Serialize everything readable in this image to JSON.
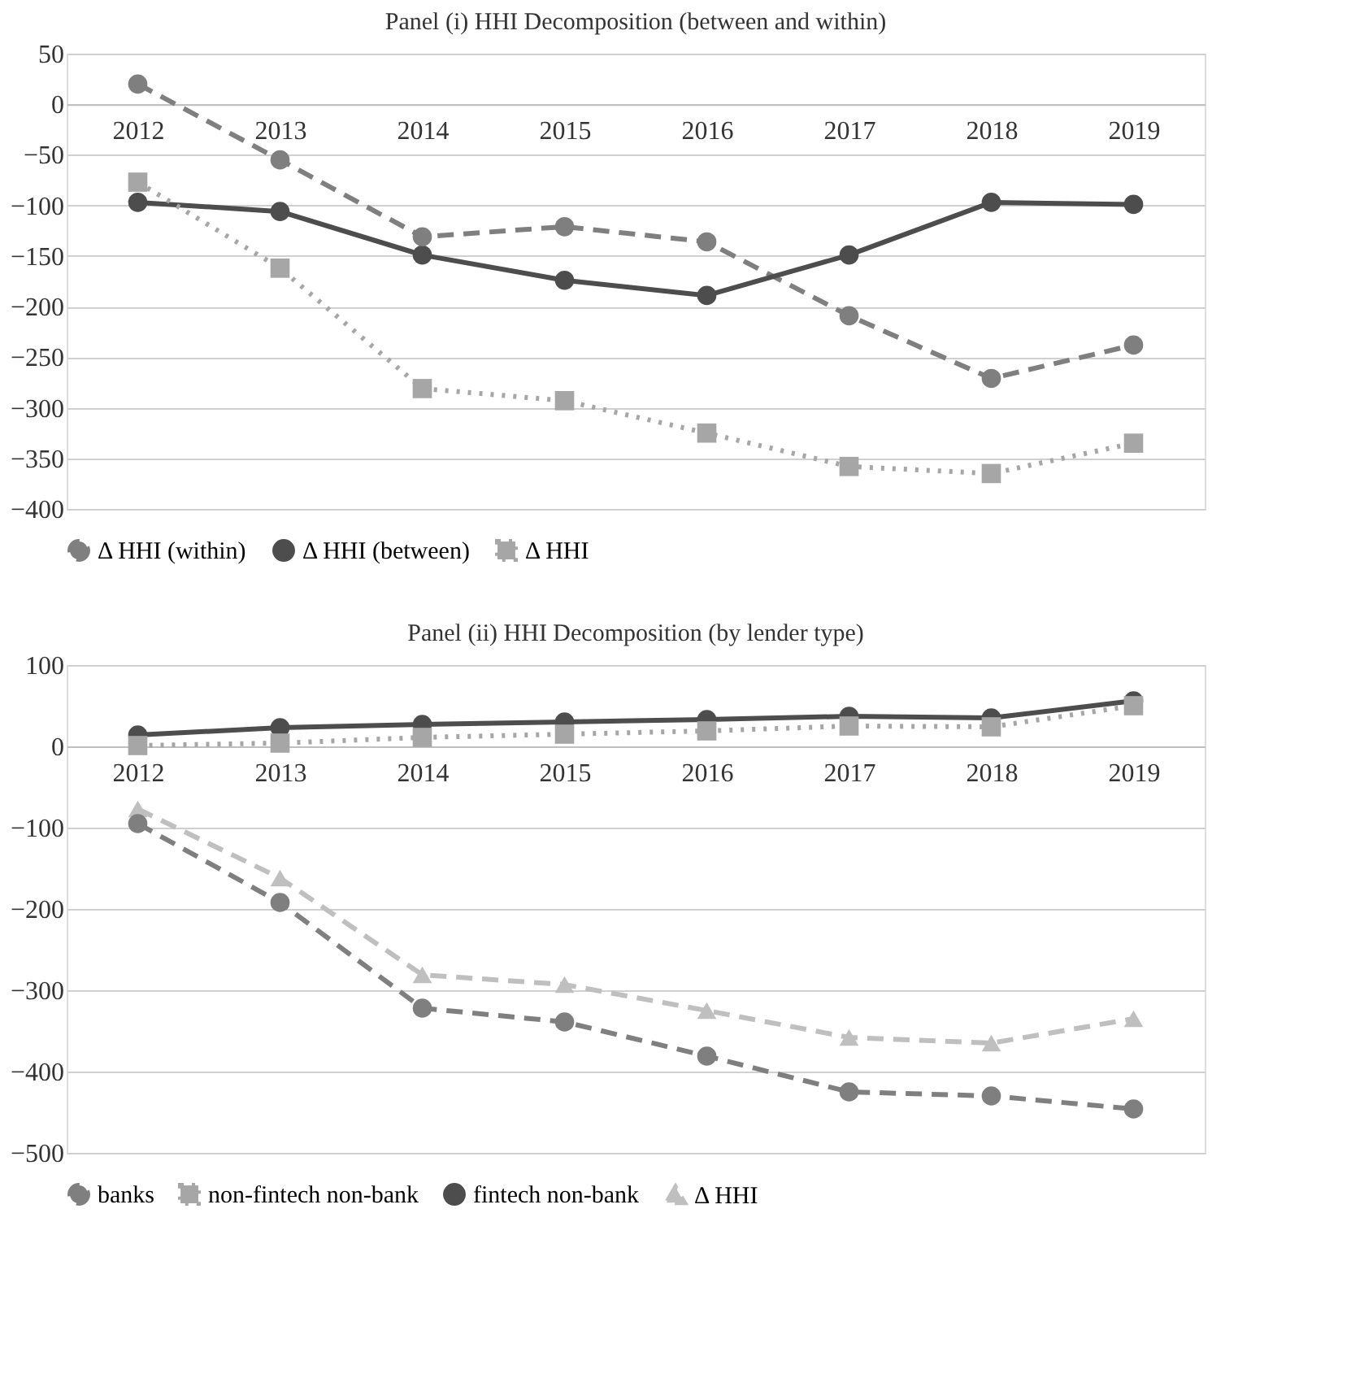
{
  "chart_data": [
    {
      "type": "line",
      "title": "Panel (i) HHI Decomposition (between and within)",
      "categories": [
        "2012",
        "2013",
        "2014",
        "2015",
        "2016",
        "2017",
        "2018",
        "2019"
      ],
      "ylim": [
        -400,
        50
      ],
      "yticks": [
        -400,
        -350,
        -300,
        -250,
        -200,
        -150,
        -100,
        -50,
        0,
        50
      ],
      "grid": "y",
      "legend": "bottom",
      "series": [
        {
          "name": "Δ HHI (within)",
          "color": "#7f7f7f",
          "marker": "circle",
          "line_style": "dashed",
          "values": [
            20,
            -55,
            -131,
            -121,
            -136,
            -209,
            -271,
            -238
          ]
        },
        {
          "name": "Δ HHI (between)",
          "color": "#4d4d4d",
          "marker": "circle",
          "line_style": "solid",
          "values": [
            -97,
            -106,
            -149,
            -174,
            -189,
            -149,
            -97,
            -99
          ]
        },
        {
          "name": "Δ HHI",
          "color": "#a6a6a6",
          "marker": "square",
          "line_style": "dotted",
          "values": [
            -77,
            -162,
            -281,
            -293,
            -325,
            -358,
            -365,
            -335
          ]
        }
      ]
    },
    {
      "type": "line",
      "title": "Panel (ii) HHI Decomposition (by lender type)",
      "categories": [
        "2012",
        "2013",
        "2014",
        "2015",
        "2016",
        "2017",
        "2018",
        "2019"
      ],
      "ylim": [
        -500,
        100
      ],
      "yticks": [
        -500,
        -400,
        -300,
        -200,
        -100,
        0,
        100
      ],
      "grid": "y",
      "legend": "bottom",
      "series": [
        {
          "name": "banks",
          "color": "#7f7f7f",
          "marker": "circle",
          "line_style": "dashed",
          "values": [
            -95,
            -192,
            -322,
            -339,
            -381,
            -425,
            -430,
            -446
          ]
        },
        {
          "name": "non-fintech non-bank",
          "color": "#a6a6a6",
          "marker": "square",
          "line_style": "dotted",
          "values": [
            1,
            4,
            11,
            15,
            19,
            25,
            24,
            50
          ]
        },
        {
          "name": "fintech non-bank",
          "color": "#4d4d4d",
          "marker": "circle",
          "line_style": "solid",
          "values": [
            14,
            23,
            27,
            30,
            33,
            37,
            35,
            56
          ]
        },
        {
          "name": "Δ HHI",
          "color": "#bfbfbf",
          "marker": "triangle",
          "line_style": "dashed",
          "values": [
            -77,
            -162,
            -281,
            -293,
            -325,
            -358,
            -365,
            -335
          ]
        }
      ]
    }
  ]
}
